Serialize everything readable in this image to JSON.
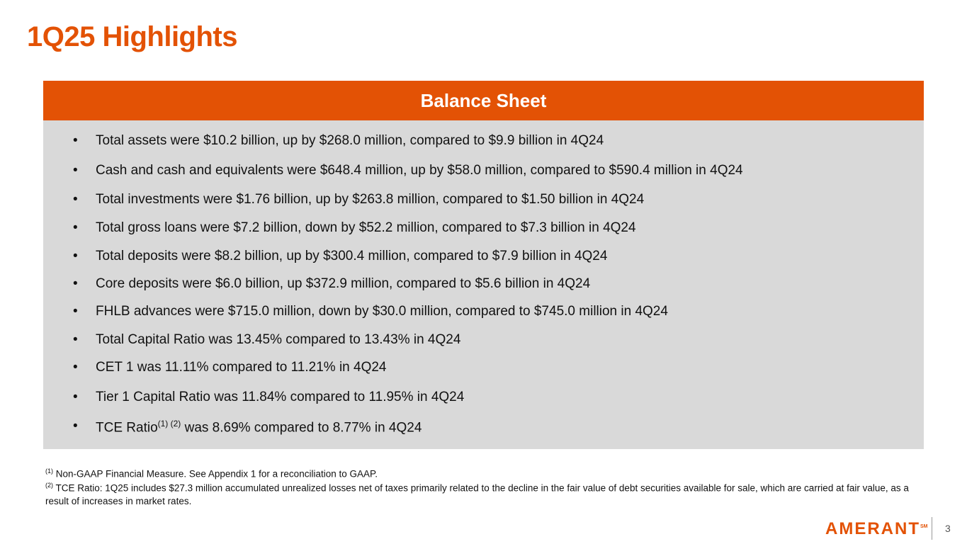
{
  "title": "1Q25 Highlights",
  "section": {
    "header": "Balance Sheet",
    "bullets": [
      "Total assets were $10.2 billion, up by $268.0 million, compared to $9.9 billion in 4Q24",
      "Cash and cash and equivalents were $648.4 million, up by $58.0 million, compared to $590.4 million in 4Q24",
      "Total investments were $1.76 billion, up by $263.8 million, compared to $1.50 billion in 4Q24",
      "Total gross loans were $7.2 billion, down by $52.2 million, compared to $7.3 billion in 4Q24",
      "Total deposits were $8.2 billion, up by $300.4 million, compared to $7.9 billion  in 4Q24",
      "Core deposits were $6.0 billion, up $372.9 million, compared to $5.6 billion in 4Q24",
      "FHLB advances were $715.0 million, down by $30.0 million, compared to $745.0 million in 4Q24",
      "Total Capital Ratio was 13.45% compared to 13.43% in 4Q24",
      "CET 1 was 11.11% compared to 11.21% in 4Q24",
      "Tier 1 Capital Ratio was 11.84% compared to 11.95% in 4Q24"
    ],
    "last_bullet": {
      "before": "TCE Ratio",
      "sup": "(1) (2)",
      "after": " was 8.69% compared to 8.77% in 4Q24"
    }
  },
  "footnotes": [
    {
      "mark": "(1)",
      "text": " Non-GAAP Financial Measure. See Appendix 1 for a reconciliation to GAAP."
    },
    {
      "mark": "(2)",
      "text": " TCE Ratio: 1Q25 includes $27.3 million accumulated unrealized losses net of taxes primarily related to the decline in the fair value of debt securities available for sale, which are carried at fair value, as a result of increases in market rates."
    }
  ],
  "logo": {
    "text": "AMERANT",
    "mark": "SM"
  },
  "page_number": "3"
}
